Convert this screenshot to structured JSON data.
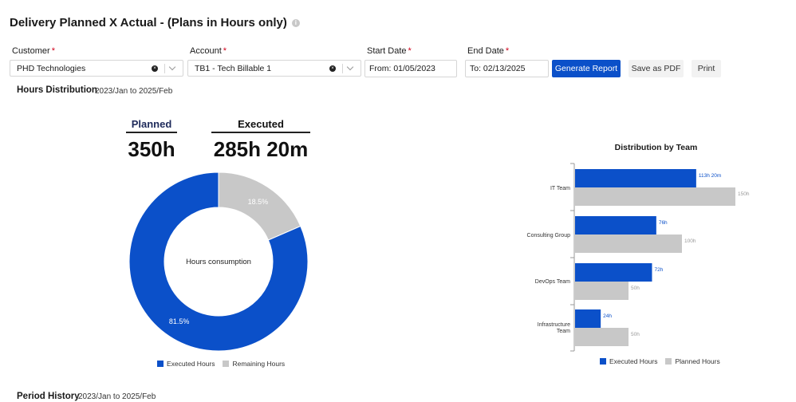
{
  "page": {
    "title": "Delivery Planned X Actual - (Plans in Hours only)",
    "info_icon": "i"
  },
  "filters": {
    "customer": {
      "label": "Customer",
      "required_mark": "*",
      "value": "PHD Technologies",
      "clear_icon": "×"
    },
    "account": {
      "label": "Account",
      "required_mark": "*",
      "value": "TB1 - Tech Billable 1",
      "clear_icon": "×"
    },
    "start_date": {
      "label": "Start Date",
      "required_mark": "*",
      "value": "From: 01/05/2023"
    },
    "end_date": {
      "label": "End Date",
      "required_mark": "*",
      "value": "To: 02/13/2025"
    }
  },
  "actions": {
    "generate_report": "Generate Report",
    "save_pdf": "Save as PDF",
    "print": "Print"
  },
  "hours_distribution": {
    "title": "Hours Distribution",
    "range": "2023/Jan to 2025/Feb",
    "planned_label": "Planned",
    "planned_value": "350h",
    "executed_label": "Executed",
    "executed_value": "285h 20m"
  },
  "period_history": {
    "title": "Period History",
    "range": "2023/Jan to 2025/Feb"
  },
  "colors": {
    "executed": "#0b50c9",
    "remaining": "#c8c8c8",
    "planned": "#c8c8c8"
  },
  "chart_data": [
    {
      "type": "pie",
      "center_label": "Hours consumption",
      "categories": [
        "Executed Hours",
        "Remaining Hours"
      ],
      "values": [
        81.5,
        18.5
      ],
      "value_labels": [
        "81.5%",
        "18.5%"
      ],
      "legend": [
        "Executed Hours",
        "Remaining Hours"
      ],
      "legend_position": "bottom"
    },
    {
      "type": "bar",
      "orientation": "horizontal",
      "title": "Distribution by Team",
      "categories": [
        "IT Team",
        "Consulting Group",
        "DevOps Team",
        "Infrastructure Team"
      ],
      "series": [
        {
          "name": "Executed Hours",
          "values": [
            113.33,
            76,
            72,
            24
          ],
          "labels": [
            "113h 20m",
            "76h",
            "72h",
            "24h"
          ]
        },
        {
          "name": "Planned Hours",
          "values": [
            150,
            100,
            50,
            50
          ],
          "labels": [
            "150h",
            "100h",
            "50h",
            "50h"
          ]
        }
      ],
      "xlim": [
        0,
        150
      ],
      "legend_position": "bottom"
    }
  ]
}
